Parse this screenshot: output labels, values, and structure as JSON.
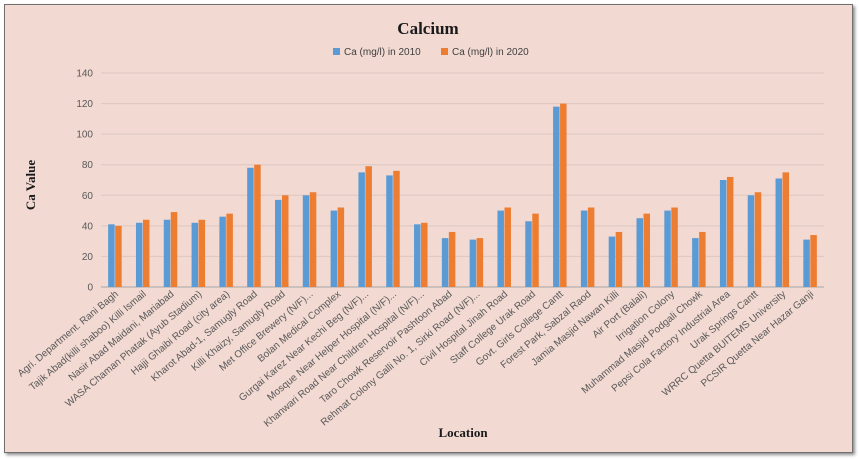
{
  "chart_data": {
    "type": "bar",
    "title": "Calcium",
    "xlabel": "Location",
    "ylabel": "Ca Value",
    "ylim": [
      0,
      140
    ],
    "yticks": [
      0,
      20,
      40,
      60,
      80,
      100,
      120,
      140
    ],
    "grid": true,
    "legend_position": "top",
    "categories": [
      "Agri. Department. Rani Bagh",
      "Tajik Abad(killi shaboo) Killi Ismail",
      "Nasir Abad Maidani, Mariabad",
      "WASA Chaman Phatak (Ayub Stadium)",
      "Hajji Ghaibi Road (city area)",
      "Kharot Abad-1, Samugly Road",
      "Killi Khaizy, Samugly Road",
      "Met Office Brewery (N/F)...",
      "Bolan Medical Complex",
      "Gurgai Karez Near Kechi Beg (N/F)...",
      "Mosque Near Helper Hospital (N/F)...",
      "Khanwari Road Near Children Hospital (N/F)...",
      "Taro Chowk Reservoir Pashtoon Abad",
      "Rehmat Colony Galli No. 1, Sirki Road (N/F)...",
      "Civil Hospital Jinah Road",
      "Staff College Urak Road",
      "Govt. Girls College Cantt",
      "Forest Park, Sabzal  Raod",
      "Jamia Masjid Nawan Killi",
      "Air Port (Balali)",
      "Irrigation Colony",
      "Muhammad Masjid Podgali Chowk",
      "Pepsi Cola Factory Industrial Area",
      "Urak Springs Cantt",
      "WRRC Quetta BUITEMS University",
      "PCSIR Quetta Near Hazar Ganji"
    ],
    "series": [
      {
        "name": "Ca (mg/l) in 2010",
        "color": "#5b9bd5",
        "values": [
          41,
          42,
          44,
          42,
          46,
          78,
          57,
          60,
          50,
          75,
          73,
          41,
          32,
          31,
          50,
          43,
          118,
          50,
          33,
          45,
          50,
          32,
          70,
          60,
          71,
          31
        ]
      },
      {
        "name": "Ca (mg/l) in 2020",
        "color": "#ed7d31",
        "values": [
          40,
          44,
          49,
          44,
          48,
          80,
          60,
          62,
          52,
          79,
          76,
          42,
          36,
          32,
          52,
          48,
          120,
          52,
          36,
          48,
          52,
          36,
          72,
          62,
          75,
          34
        ]
      }
    ]
  }
}
